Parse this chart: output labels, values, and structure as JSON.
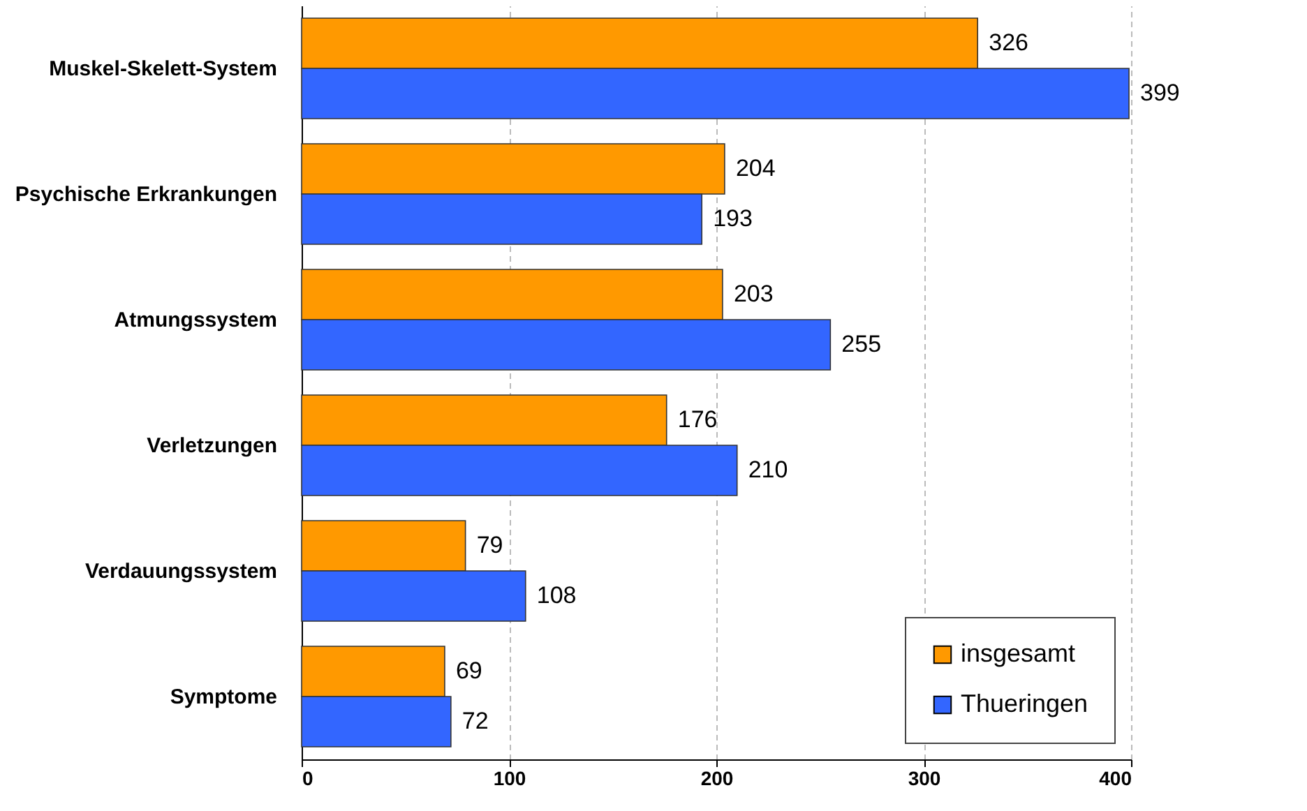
{
  "chart_data": {
    "type": "bar",
    "orientation": "horizontal",
    "categories": [
      "Muskel-Skelett-System",
      "Psychische Erkrankungen",
      "Atmungssystem",
      "Verletzungen",
      "Verdauungssystem",
      "Symptome"
    ],
    "series": [
      {
        "name": "insgesamt",
        "color": "#ff9900",
        "values": [
          326,
          204,
          203,
          176,
          79,
          69
        ]
      },
      {
        "name": "Thueringen",
        "color": "#3366ff",
        "values": [
          399,
          193,
          255,
          210,
          108,
          72
        ]
      }
    ],
    "xlim": [
      0,
      400
    ],
    "xticks": [
      0,
      100,
      200,
      300,
      400
    ],
    "grid": "x",
    "legend": "bottom right",
    "data_labels": true
  }
}
